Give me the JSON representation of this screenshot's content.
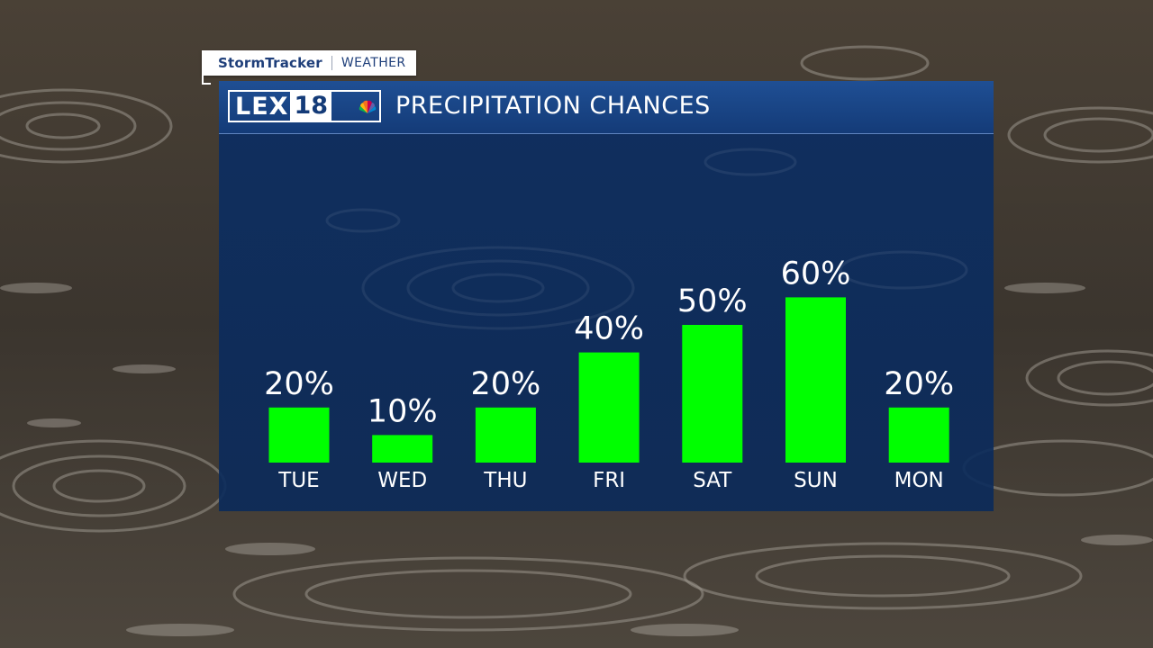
{
  "tag": {
    "brand": "StormTracker",
    "section": "WEATHER"
  },
  "header": {
    "logo_text": "LEX",
    "logo_number": "18",
    "title": "PRECIPITATION CHANCES"
  },
  "colors": {
    "bar": "#00ff00",
    "panel": "#0c2e62",
    "header": "#1a4789",
    "text": "#ffffff"
  },
  "chart_data": {
    "type": "bar",
    "title": "PRECIPITATION CHANCES",
    "categories": [
      "TUE",
      "WED",
      "THU",
      "FRI",
      "SAT",
      "SUN",
      "MON"
    ],
    "values": [
      20,
      10,
      20,
      40,
      50,
      60,
      20
    ],
    "value_labels": [
      "20%",
      "10%",
      "20%",
      "40%",
      "50%",
      "60%",
      "20%"
    ],
    "ylim": [
      0,
      60
    ],
    "grid": false,
    "legend": "none"
  }
}
